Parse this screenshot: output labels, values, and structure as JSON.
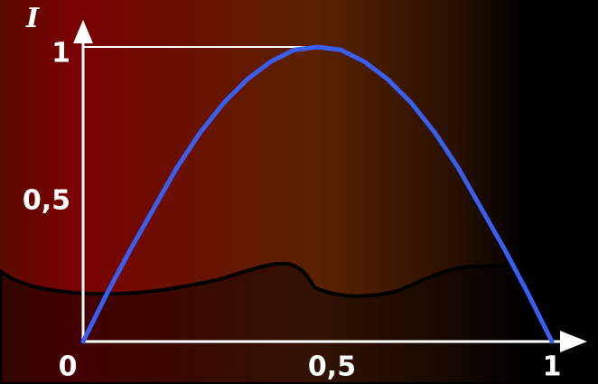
{
  "chart_data": {
    "type": "line",
    "ylabel": "I",
    "x": [
      0,
      0.05,
      0.1,
      0.15,
      0.2,
      0.25,
      0.3,
      0.35,
      0.4,
      0.45,
      0.5,
      0.55,
      0.6,
      0.65,
      0.7,
      0.75,
      0.8,
      0.85,
      0.9,
      0.95,
      1
    ],
    "series": [
      {
        "color": "#3a5ff0",
        "values": [
          0,
          0.16,
          0.31,
          0.45,
          0.59,
          0.71,
          0.81,
          0.89,
          0.95,
          0.99,
          1,
          0.99,
          0.95,
          0.89,
          0.81,
          0.71,
          0.59,
          0.45,
          0.31,
          0.16,
          0
        ]
      }
    ],
    "xlim": [
      0,
      1
    ],
    "ylim": [
      0,
      1
    ],
    "xticks": [
      0,
      {
        "value": 0.5,
        "label": "0,5"
      },
      1
    ],
    "yticks": [
      {
        "value": 0.5,
        "label": "0,5"
      },
      1
    ]
  }
}
